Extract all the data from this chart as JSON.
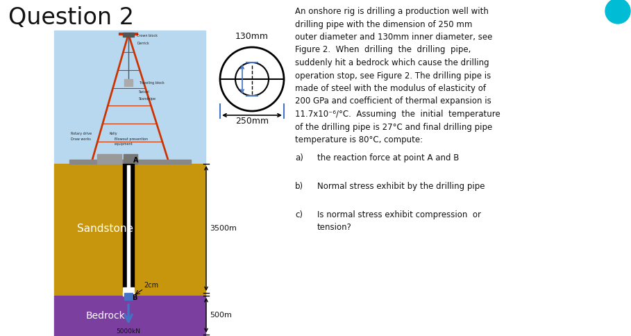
{
  "title": "Question 2",
  "title_fontsize": 24,
  "bg_color": "#ffffff",
  "sandstone_color": "#C8960C",
  "bedrock_color": "#7B3FA0",
  "sky_color": "#B8D8F0",
  "pipe_blue": "#4472C4",
  "teal_dot_color": "#00BCD4",
  "dim_label_130": "130mm",
  "dim_label_250": "250mm",
  "sandstone_label": "Sandstone",
  "sandstone_depth": "3500m",
  "bedrock_label": "Bedrock",
  "bedrock_depth": "500m",
  "gap_label": "2cm",
  "point_A": "A",
  "point_B": "B",
  "force_label": "5000kN",
  "text_line1": "An onshore rig is drilling a production well with",
  "text_line2": "drilling pipe with the dimension of 250 mm",
  "text_line3": "outer diameter and 130mm inner diameter, see",
  "text_line4": "Figure 2.  When  drilling  the  drilling  pipe,",
  "text_line5": "suddenly hit a bedrock which cause the drilling",
  "text_line6": "operation stop, see Figure 2. The drilling pipe is",
  "text_line7": "made of steel with the modulus of elasticity of",
  "text_line8": "200 GPa and coefficient of thermal expansion is",
  "text_line9": "11.7x10⁻⁶/°C.  Assuming  the  initial  temperature",
  "text_line10": "of the drilling pipe is 27°C and final drilling pipe",
  "text_line11": "temperature is 80°C, compute:",
  "qa_label": "a)",
  "qa_text": "the reaction force at point A and B",
  "qb_label": "b)",
  "qb_text": "Normal stress exhibit by the drilling pipe",
  "qc_label": "c)",
  "qc_text1": "Is normal stress exhibit compression  or",
  "qc_text2": "tension?"
}
